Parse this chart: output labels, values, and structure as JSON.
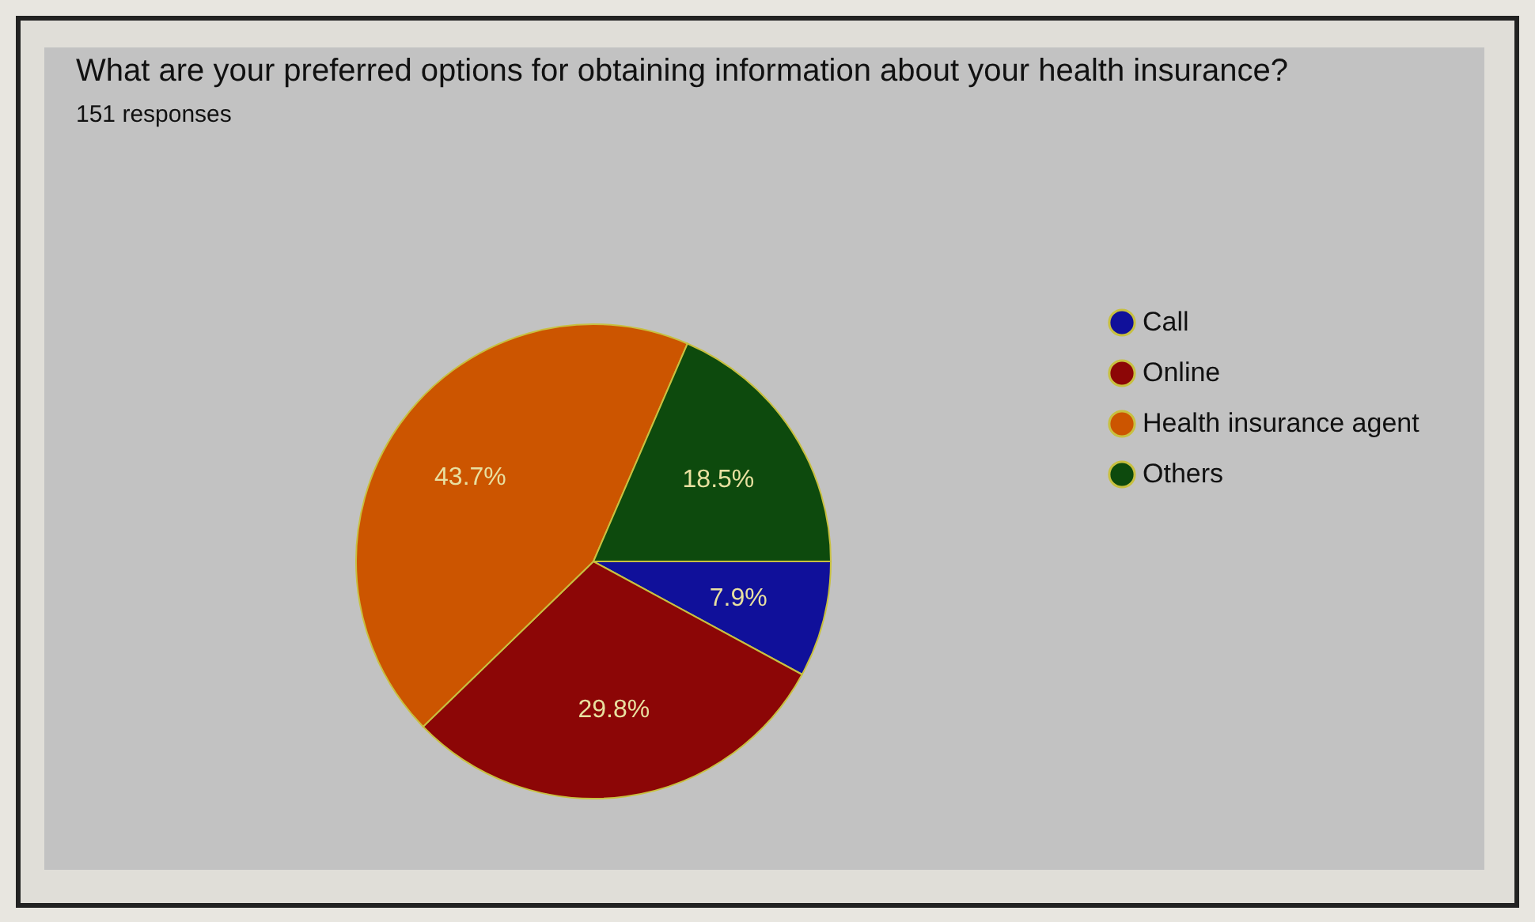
{
  "chart_data": {
    "type": "pie",
    "title": "What are your preferred options for obtaining information about your health insurance?",
    "subtitle": "151 responses",
    "categories": [
      "Call",
      "Online",
      "Health insurance agent",
      "Others"
    ],
    "values": [
      7.9,
      29.8,
      43.7,
      18.5
    ],
    "colors": [
      "#10109a",
      "#8c0606",
      "#cc5500",
      "#0d4a0d"
    ],
    "value_labels": [
      "7.9%",
      "29.8%",
      "43.7%",
      "18.5%"
    ],
    "legend": "right"
  }
}
